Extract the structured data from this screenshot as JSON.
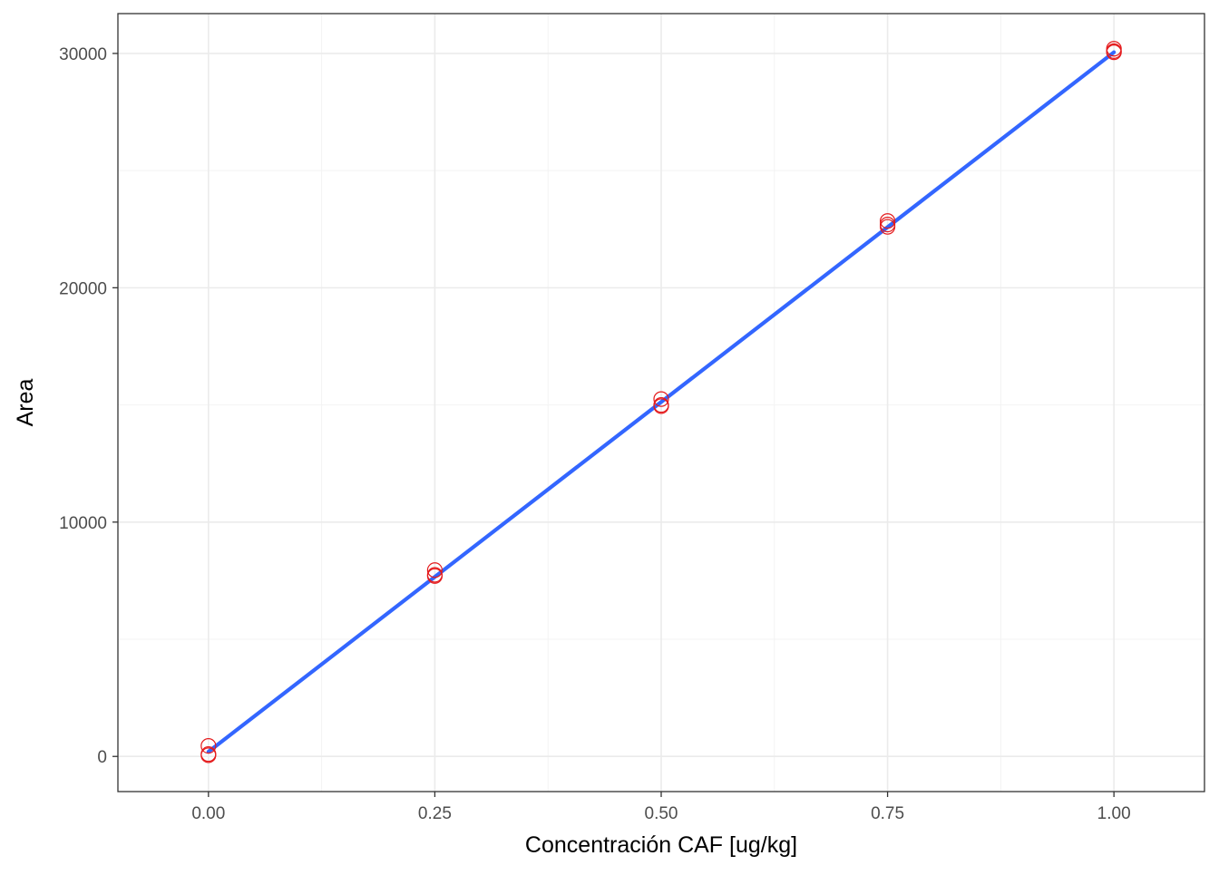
{
  "chart_data": {
    "type": "scatter",
    "title": "",
    "xlabel": "Concentración CAF [ug/kg]",
    "ylabel": "Area",
    "xlim": [
      -0.1,
      1.1
    ],
    "ylim": [
      -1500,
      31700
    ],
    "x_ticks": [
      0.0,
      0.25,
      0.5,
      0.75,
      1.0
    ],
    "x_tick_labels": [
      "0.00",
      "0.25",
      "0.50",
      "0.75",
      "1.00"
    ],
    "y_ticks": [
      0,
      10000,
      20000,
      30000
    ],
    "y_tick_labels": [
      "0",
      "10000",
      "20000",
      "30000"
    ],
    "grid": true,
    "legend": "none",
    "series": [
      {
        "type": "scatter",
        "marker": "open-circle",
        "color": "#e41a1c",
        "x": [
          0,
          0,
          0,
          0.25,
          0.25,
          0.25,
          0.5,
          0.5,
          0.5,
          0.75,
          0.75,
          0.75,
          1.0,
          1.0,
          1.0
        ],
        "y": [
          450,
          100,
          50,
          7950,
          7700,
          7750,
          15250,
          15000,
          14950,
          22850,
          22600,
          22700,
          30200,
          30100,
          30050
        ]
      },
      {
        "type": "line",
        "fit": "linear",
        "color": "#3366ff",
        "x": [
          0,
          1
        ],
        "y": [
          200,
          30050
        ]
      }
    ]
  }
}
